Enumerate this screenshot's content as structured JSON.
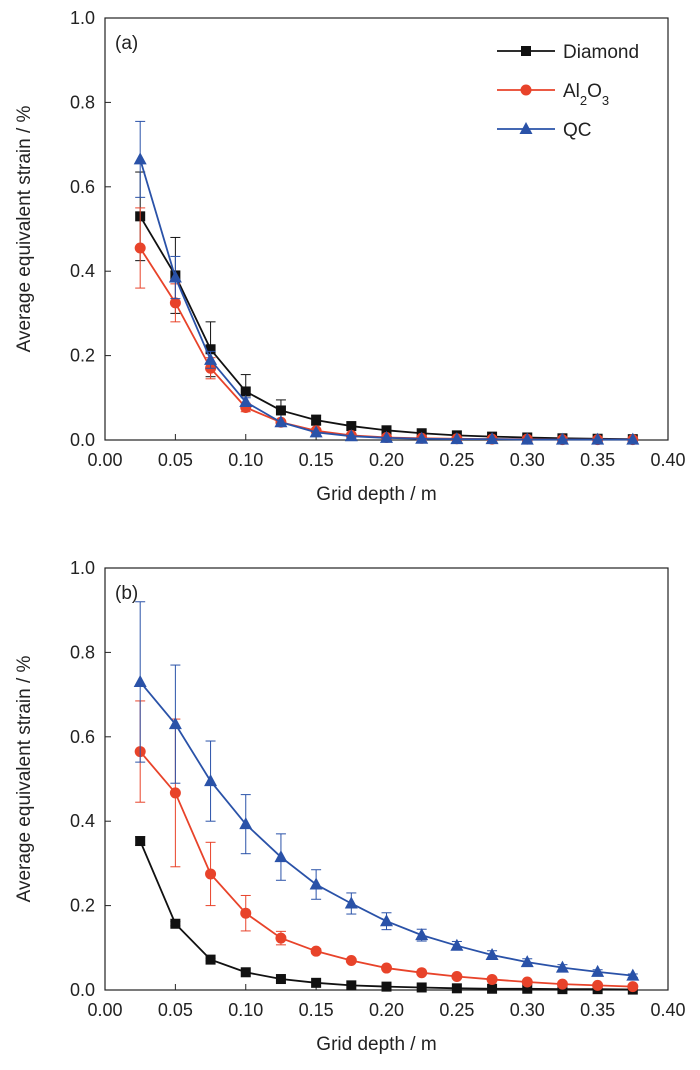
{
  "colors": {
    "diamond": "#111111",
    "al2o3": "#e8432a",
    "qc": "#2a52a8",
    "axis": "#222222"
  },
  "legend": [
    {
      "key": "diamond",
      "label": "Diamond",
      "sub": "",
      "marker": "square"
    },
    {
      "key": "al2o3",
      "label": "Al2O3",
      "sub": "2,3",
      "marker": "circle"
    },
    {
      "key": "qc",
      "label": "QC",
      "sub": "",
      "marker": "triangle"
    }
  ],
  "chart_data": [
    {
      "type": "line",
      "panel_label": "(a)",
      "xlabel": "Grid depth / m",
      "ylabel": "Average equivalent strain / %",
      "xlim": [
        0,
        0.4
      ],
      "ylim": [
        0,
        1.0
      ],
      "xticks": [
        "0.00",
        "0.05",
        "0.10",
        "0.15",
        "0.20",
        "0.25",
        "0.30",
        "0.35",
        "0.40"
      ],
      "yticks": [
        "0.0",
        "0.2",
        "0.4",
        "0.6",
        "0.8",
        "1.0"
      ],
      "legend_position": "top-right",
      "x": [
        0.025,
        0.05,
        0.075,
        0.1,
        0.125,
        0.15,
        0.175,
        0.2,
        0.225,
        0.25,
        0.275,
        0.3,
        0.325,
        0.35,
        0.375
      ],
      "series": [
        {
          "name": "Diamond",
          "marker": "square",
          "values": [
            0.53,
            0.39,
            0.215,
            0.115,
            0.07,
            0.047,
            0.033,
            0.023,
            0.016,
            0.011,
            0.008,
            0.006,
            0.004,
            0.003,
            0.002
          ],
          "errors": [
            0.105,
            0.09,
            0.065,
            0.04,
            0.025,
            0.012,
            0,
            0,
            0,
            0,
            0,
            0,
            0,
            0,
            0
          ]
        },
        {
          "name": "Al2O3",
          "marker": "circle",
          "values": [
            0.455,
            0.325,
            0.17,
            0.077,
            0.042,
            0.022,
            0.011,
            0.006,
            0.004,
            0.003,
            0.002,
            0.002,
            0.001,
            0.001,
            0.001
          ],
          "errors": [
            0.095,
            0.045,
            0.025,
            0.01,
            0,
            0,
            0,
            0,
            0,
            0,
            0,
            0,
            0,
            0,
            0
          ]
        },
        {
          "name": "QC",
          "marker": "triangle",
          "values": [
            0.665,
            0.385,
            0.19,
            0.09,
            0.042,
            0.018,
            0.009,
            0.005,
            0.003,
            0.002,
            0.002,
            0.001,
            0.001,
            0.001,
            0.001
          ],
          "errors": [
            0.09,
            0.05,
            0.02,
            0.01,
            0,
            0,
            0,
            0,
            0,
            0,
            0,
            0,
            0,
            0,
            0
          ]
        }
      ]
    },
    {
      "type": "line",
      "panel_label": "(b)",
      "xlabel": "Grid depth / m",
      "ylabel": "Average equivalent strain / %",
      "xlim": [
        0,
        0.4
      ],
      "ylim": [
        0,
        1.0
      ],
      "xticks": [
        "0.00",
        "0.05",
        "0.10",
        "0.15",
        "0.20",
        "0.25",
        "0.30",
        "0.35",
        "0.40"
      ],
      "yticks": [
        "0.0",
        "0.2",
        "0.4",
        "0.6",
        "0.8",
        "1.0"
      ],
      "x": [
        0.025,
        0.05,
        0.075,
        0.1,
        0.125,
        0.15,
        0.175,
        0.2,
        0.225,
        0.25,
        0.275,
        0.3,
        0.325,
        0.35,
        0.375
      ],
      "series": [
        {
          "name": "Diamond",
          "marker": "square",
          "values": [
            0.353,
            0.157,
            0.072,
            0.042,
            0.026,
            0.017,
            0.011,
            0.008,
            0.006,
            0.004,
            0.003,
            0.003,
            0.002,
            0.002,
            0.001
          ],
          "errors": [
            0.01,
            0.005,
            0.003,
            0,
            0,
            0,
            0,
            0,
            0,
            0,
            0,
            0,
            0,
            0,
            0
          ]
        },
        {
          "name": "Al2O3",
          "marker": "circle",
          "values": [
            0.565,
            0.467,
            0.275,
            0.182,
            0.123,
            0.092,
            0.07,
            0.052,
            0.041,
            0.032,
            0.025,
            0.019,
            0.014,
            0.011,
            0.008
          ],
          "errors": [
            0.12,
            0.175,
            0.075,
            0.042,
            0.016,
            0.006,
            0.004,
            0.003,
            0,
            0,
            0,
            0,
            0,
            0,
            0
          ]
        },
        {
          "name": "QC",
          "marker": "triangle",
          "values": [
            0.73,
            0.63,
            0.495,
            0.393,
            0.315,
            0.25,
            0.205,
            0.163,
            0.13,
            0.105,
            0.083,
            0.066,
            0.053,
            0.043,
            0.034
          ],
          "errors": [
            0.19,
            0.14,
            0.095,
            0.07,
            0.055,
            0.035,
            0.025,
            0.02,
            0.014,
            0.01,
            0.01,
            0.008,
            0.007,
            0.005,
            0.004
          ]
        }
      ]
    }
  ]
}
